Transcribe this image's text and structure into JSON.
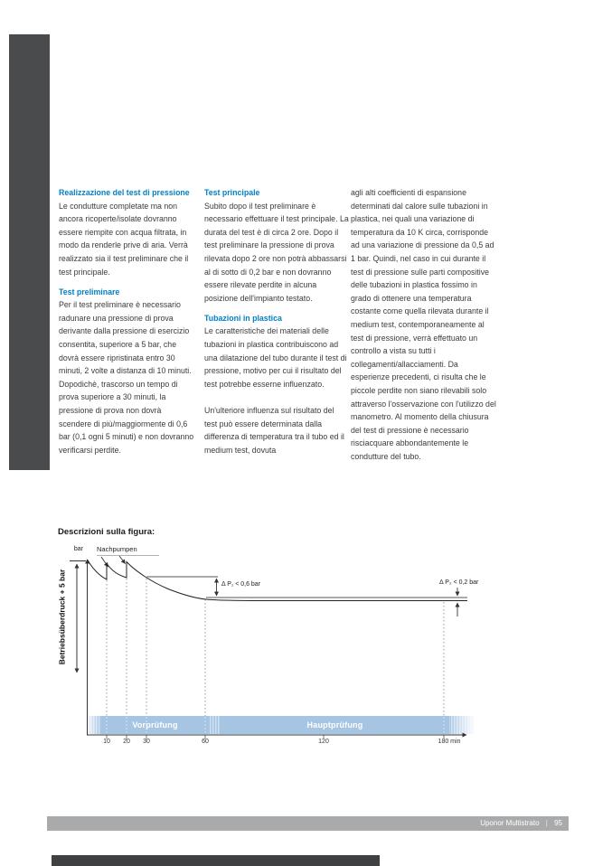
{
  "colors": {
    "accent_blue": "#0080c5",
    "band_blue": "#a5c5e3",
    "band_stripe": "#cfe0f1",
    "footer_gray": "#a8aaac",
    "side_tab_dark": "#4a4b4d",
    "body_text": "#3b3b3b"
  },
  "article": {
    "columns": [
      {
        "blocks": [
          {
            "type": "heading",
            "text": "Realizzazione del test di pressione"
          },
          {
            "type": "para",
            "text": "Le condutture completate ma non ancora ricoperte/isolate dovranno essere riempite con acqua filtrata, in modo da renderle prive di aria. Verrà realizzato sia il test preliminare che il test principale."
          },
          {
            "type": "heading",
            "text": "Test preliminare"
          },
          {
            "type": "para",
            "text": "Per il test preliminare è necessario radunare una pressione di prova derivante dalla pressione di esercizio consentita, superiore a 5 bar, che dovrà essere ripristinata entro 30 minuti, 2 volte a distanza di 10 minuti. Dopodichè, trascorso un tempo di prova superiore a 30 minuti, la pressione di prova non dovrà scendere di più/maggiormente di 0,6 bar (0,1 ogni 5 minuti) e non dovranno verificarsi perdite."
          }
        ]
      },
      {
        "blocks": [
          {
            "type": "heading",
            "text": "Test principale"
          },
          {
            "type": "para",
            "text": "Subito dopo il test preliminare è necessario effettuare il test principale. La durata del test è di circa 2 ore. Dopo il test preliminare la pressione di prova rilevata dopo 2 ore non potrà abbassarsi al di sotto di 0,2 bar e non dovranno essere rilevate perdite in alcuna posizione dell'impianto testato."
          },
          {
            "type": "heading",
            "text": "Tubazioni in plastica"
          },
          {
            "type": "para",
            "text": "Le caratteristiche dei materiali delle tubazioni in plastica contribuiscono ad una dilatazione del tubo durante il test di pressione, motivo per cui il risultato del test potrebbe esserne influenzato."
          },
          {
            "type": "para",
            "text": "Un'ulteriore influenza sul risultato del test può essere determinata dalla differenza di temperatura tra il tubo ed il medium test, dovuta"
          }
        ]
      },
      {
        "blocks": [
          {
            "type": "para",
            "text": "agli alti coefficienti di espansione determinati dal calore sulle tubazioni in plastica, nei quali una variazione di temperatura da 10 K circa, corrisponde ad una variazione di pressione da 0,5 ad 1 bar. Quindi, nel caso in cui durante il test di pressione sulle parti compositive delle tubazioni in plastica fossimo in grado di ottenere una temperatura costante come quella rilevata durante il medium test, contemporaneamente al test di pressione, verrà effettuato un controllo a vista su tutti i collegamenti/allacciamenti. Da esperienze precedenti, ci risulta che le piccole perdite non siano rilevabili solo attraverso l'osservazione con l'utilizzo del manometro. Al momento della chiusura del test di pressione è necessario risciacquare abbondantemente le condutture del tubo."
          }
        ]
      }
    ]
  },
  "figure": {
    "heading": "Descrizioni sulla figura:",
    "y_unit_label": "bar",
    "nachpumpen_label": "Nachpumpen",
    "y_axis_label": "Betriebsüberdruck + 5 bar",
    "delta_p1_label": "Δ P₁ < 0,6 bar",
    "delta_p2_label": "Δ P₂ < 0,2 bar",
    "phase_labels": [
      "Vorprüfung",
      "Hauptprüfung"
    ],
    "axis_ticks": [
      "10",
      "20",
      "30",
      "60",
      "120",
      "180 min"
    ]
  },
  "chart_data": {
    "type": "line",
    "title": "Descrizioni sulla figura:",
    "xlabel": "min",
    "ylabel": "Betriebsüberdruck + 5 bar",
    "x_ticks": [
      10,
      20,
      30,
      60,
      120,
      180
    ],
    "x_range_min": [
      0,
      185
    ],
    "grid": false,
    "phases": [
      {
        "label": "Vorprüfung",
        "start_min": 0,
        "end_min": 60
      },
      {
        "label": "Hauptprüfung",
        "start_min": 60,
        "end_min": 185
      }
    ],
    "annotations": [
      {
        "text": "Nachpumpen",
        "meaning": "re-pumping arrows at the 10 min and 20 min pressure jumps"
      },
      {
        "text": "Δ P₁ < 0,6 bar",
        "measured_between_min": [
          30,
          60
        ]
      },
      {
        "text": "Δ P₂ < 0,2 bar",
        "measured_at_min": 180
      },
      {
        "text": "bar",
        "role": "y-axis unit"
      }
    ],
    "series": [
      {
        "name": "Pressione di prova",
        "shape": "exponential decay with re-pump jumps at 10 and 20 min, flattens after 60 min until 180 min",
        "points_min_relative_pressure": [
          [
            0,
            1.0
          ],
          [
            10,
            0.78
          ],
          [
            10,
            0.96
          ],
          [
            20,
            0.81
          ],
          [
            20,
            0.98
          ],
          [
            30,
            0.8
          ],
          [
            60,
            0.55
          ],
          [
            180,
            0.54
          ]
        ]
      }
    ]
  },
  "footer": {
    "brand": "Uponor Multistrato",
    "separator": "|",
    "page_number": "95"
  }
}
